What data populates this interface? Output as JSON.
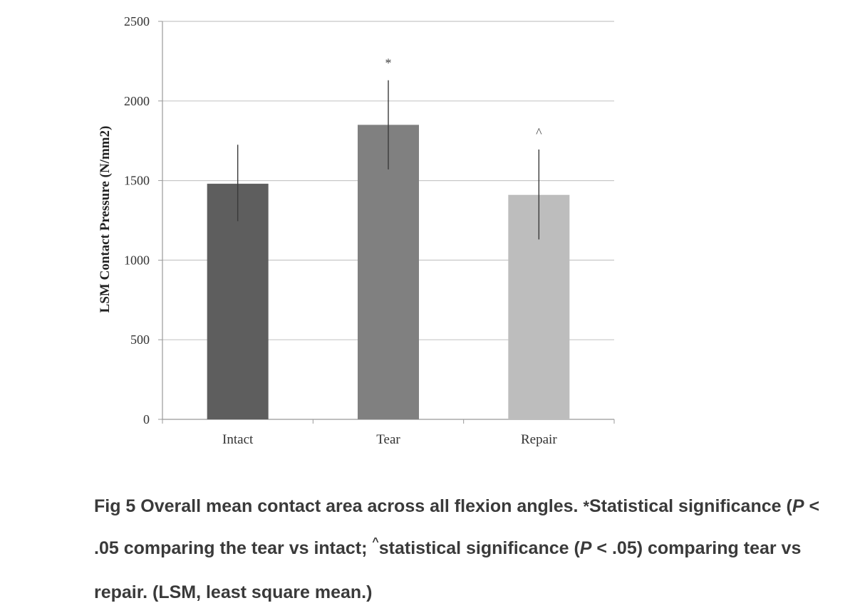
{
  "chart_data": {
    "type": "bar",
    "ylabel": "LSM Contact Pressure (N/mm2)",
    "ylim": [
      0,
      2500
    ],
    "yticks": [
      0,
      500,
      1000,
      1500,
      2000,
      2500
    ],
    "grid": true,
    "categories": [
      "Intact",
      "Tear",
      "Repair"
    ],
    "values": [
      1480,
      1850,
      1410
    ],
    "error_upper": [
      1725,
      2130,
      1695
    ],
    "error_lower": [
      1245,
      1570,
      1130
    ],
    "colors": [
      "#5e5e5e",
      "#808080",
      "#bdbdbd"
    ],
    "annotations": [
      "",
      "*",
      "^"
    ]
  },
  "caption": {
    "fig": "Fig 5",
    "t1": "Overall mean contact area across all flexion angles.",
    "sym_star": "*",
    "t2": "Statistical significance (",
    "p1": "P",
    "t3": " < .05 comparing the tear vs intact;",
    "sym_hat": "^",
    "t4": "statistical significance (",
    "p2": "P",
    "t5": " < .05) comparing tear vs repair. (LSM, least square mean.)"
  }
}
